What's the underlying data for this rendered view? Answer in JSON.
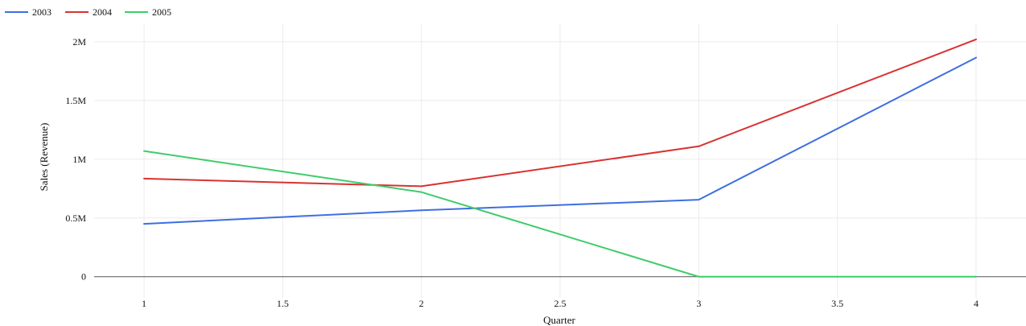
{
  "chart_data": {
    "type": "line",
    "xlabel": "Quarter",
    "ylabel": "Sales (Revenue)",
    "xlim": [
      0.82,
      4.18
    ],
    "ylim": [
      -0.18,
      2.15
    ],
    "x_ticks": [
      1,
      1.5,
      2,
      2.5,
      3,
      3.5,
      4
    ],
    "x_tick_labels": [
      "1",
      "1.5",
      "2",
      "2.5",
      "3",
      "3.5",
      "4"
    ],
    "y_ticks": [
      0,
      0.5,
      1,
      1.5,
      2
    ],
    "y_tick_labels": [
      "0",
      "0.5M",
      "1M",
      "1.5M",
      "2M"
    ],
    "y_unit": "millions",
    "grid": true,
    "legend_position": "top-left",
    "x": [
      1,
      2,
      3,
      4
    ],
    "series": [
      {
        "name": "2003",
        "color": "#3c6fe0",
        "values": [
          0.45,
          0.565,
          0.655,
          1.865
        ]
      },
      {
        "name": "2004",
        "color": "#d93232",
        "values": [
          0.835,
          0.77,
          1.11,
          2.02
        ]
      },
      {
        "name": "2005",
        "color": "#3fcc6a",
        "values": [
          1.07,
          0.72,
          0.0,
          0.0
        ]
      }
    ]
  }
}
